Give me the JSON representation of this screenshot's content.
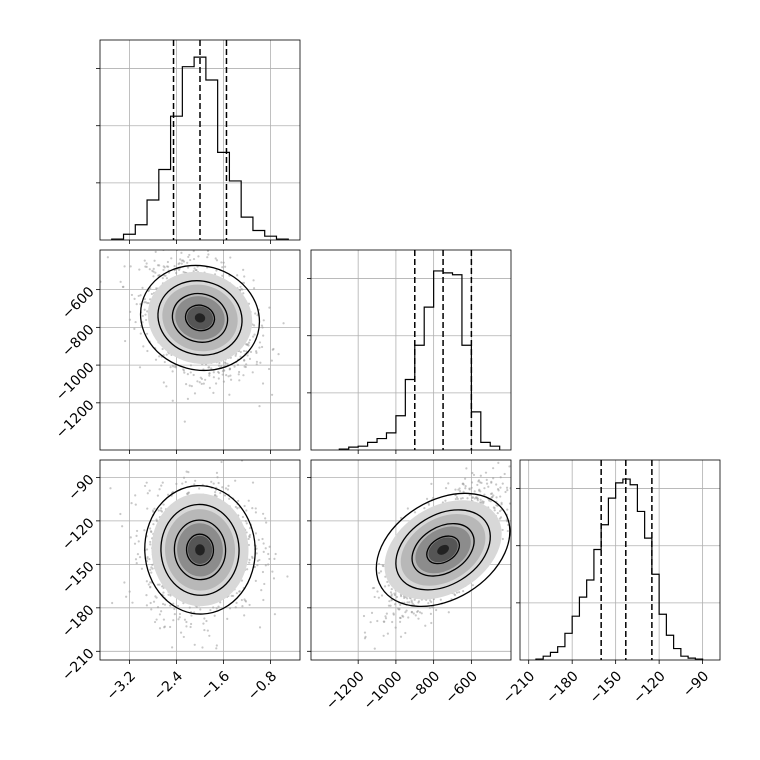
{
  "chart_data": {
    "type": "corner",
    "description_of_parameters": 3,
    "panels": [
      {
        "kind": "histogram",
        "row": 0,
        "col": 0,
        "xlim": [
          -3.7,
          -0.3
        ],
        "ylim": [
          0,
          1.05
        ],
        "x_ticks": [
          -3.2,
          -2.4,
          -1.6,
          -0.8
        ],
        "y_ticks": [
          0.3,
          0.6,
          0.9
        ],
        "quantile_lines": [
          -2.45,
          -2.0,
          -1.55
        ],
        "bin_edges": [
          -3.5,
          -3.3,
          -3.1,
          -2.9,
          -2.7,
          -2.5,
          -2.3,
          -2.1,
          -1.9,
          -1.7,
          -1.5,
          -1.3,
          -1.1,
          -0.9,
          -0.7,
          -0.5
        ],
        "counts": [
          0.005,
          0.03,
          0.08,
          0.21,
          0.37,
          0.65,
          0.91,
          0.96,
          0.84,
          0.46,
          0.31,
          0.12,
          0.05,
          0.02,
          0.005
        ]
      },
      {
        "kind": "2d",
        "row": 1,
        "col": 0,
        "xlim": [
          -3.7,
          -0.3
        ],
        "ylim": [
          -1450,
          -390
        ],
        "x_ticks": [
          -3.2,
          -2.4,
          -1.6,
          -0.8
        ],
        "y_ticks": [
          -600,
          -800,
          -1000,
          -1200
        ],
        "y_tick_labels": [
          "−600",
          "−800",
          "−1000",
          "−1200"
        ],
        "center": [
          -2.0,
          -750
        ],
        "sd": [
          0.45,
          150
        ],
        "rho": -0.3
      },
      {
        "kind": "histogram",
        "row": 1,
        "col": 1,
        "xlim": [
          -1450,
          -390
        ],
        "ylim": [
          0,
          1.05
        ],
        "x_ticks": [
          -1200,
          -1000,
          -800,
          -600
        ],
        "y_ticks": [
          0.3,
          0.6,
          0.9
        ],
        "quantile_lines": [
          -900,
          -750,
          -600
        ],
        "bin_edges": [
          -1300,
          -1250,
          -1200,
          -1150,
          -1100,
          -1050,
          -1000,
          -950,
          -900,
          -850,
          -800,
          -750,
          -700,
          -650,
          -600,
          -550,
          -500,
          -450
        ],
        "counts": [
          0.005,
          0.015,
          0.02,
          0.04,
          0.06,
          0.09,
          0.18,
          0.37,
          0.55,
          0.75,
          0.94,
          0.93,
          0.92,
          0.55,
          0.2,
          0.04,
          0.02
        ]
      },
      {
        "kind": "2d",
        "row": 2,
        "col": 0,
        "xlim": [
          -3.7,
          -0.3
        ],
        "ylim": [
          -216,
          -78
        ],
        "x_ticks": [
          -3.2,
          -2.4,
          -1.6,
          -0.8
        ],
        "y_ticks": [
          -90,
          -120,
          -150,
          -180,
          -210
        ],
        "center": [
          -2.0,
          -140
        ],
        "sd": [
          0.45,
          22
        ],
        "rho": 0.05
      },
      {
        "kind": "2d",
        "row": 2,
        "col": 1,
        "xlim": [
          -1450,
          -390
        ],
        "ylim": [
          -216,
          -78
        ],
        "x_ticks": [
          -1200,
          -1000,
          -800,
          -600
        ],
        "y_ticks": [
          -90,
          -120,
          -150,
          -180,
          -210
        ],
        "center": [
          -750,
          -140
        ],
        "sd": [
          150,
          22
        ],
        "rho": 0.7
      },
      {
        "kind": "histogram",
        "row": 2,
        "col": 2,
        "xlim": [
          -216,
          -78
        ],
        "ylim": [
          0,
          1.05
        ],
        "x_ticks": [
          -210,
          -180,
          -150,
          -120,
          -90
        ],
        "y_ticks": [
          0.3,
          0.6,
          0.9
        ],
        "quantile_lines": [
          -160,
          -143,
          -125
        ],
        "bin_edges": [
          -205,
          -200,
          -195,
          -190,
          -185,
          -180,
          -175,
          -170,
          -165,
          -160,
          -155,
          -150,
          -145,
          -140,
          -135,
          -130,
          -125,
          -120,
          -115,
          -110,
          -105,
          -100,
          -95,
          -90
        ],
        "counts": [
          0.005,
          0.02,
          0.04,
          0.07,
          0.14,
          0.23,
          0.33,
          0.42,
          0.58,
          0.71,
          0.85,
          0.93,
          0.95,
          0.92,
          0.78,
          0.64,
          0.45,
          0.24,
          0.13,
          0.06,
          0.02,
          0.01,
          0.005
        ]
      }
    ]
  }
}
